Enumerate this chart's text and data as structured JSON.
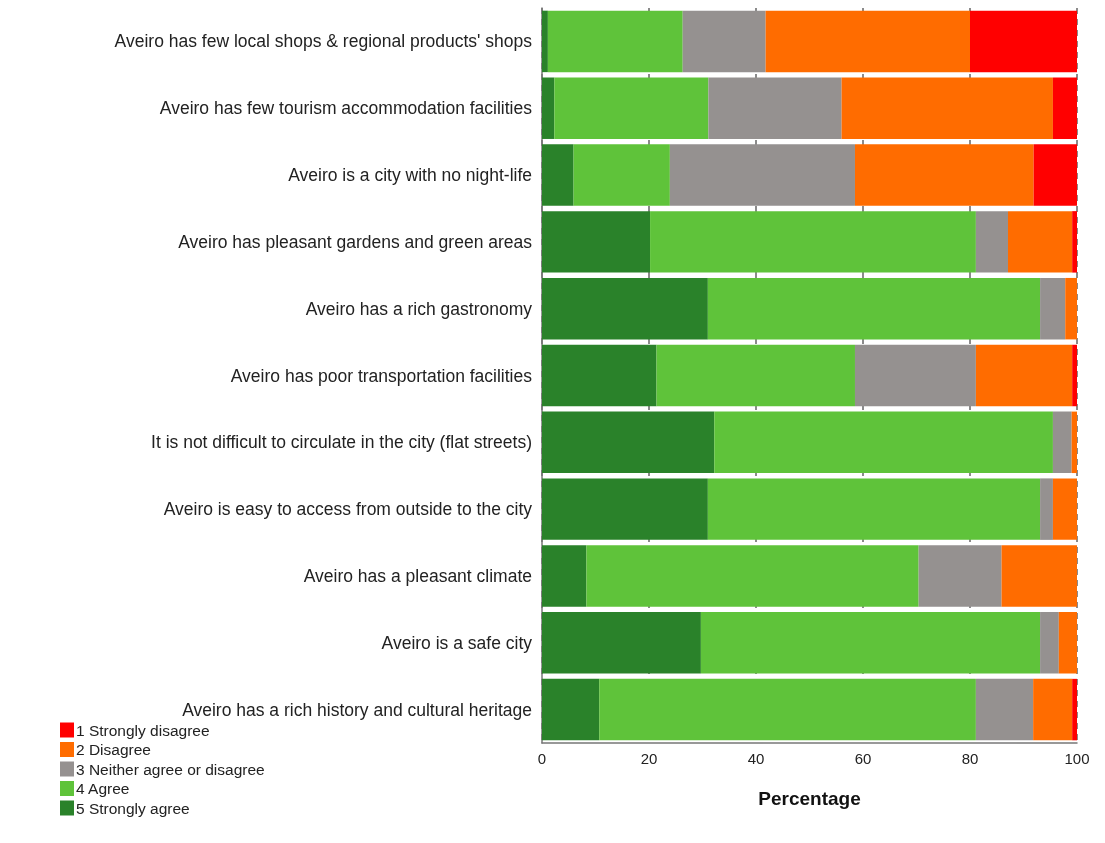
{
  "chart_data": {
    "type": "bar",
    "orientation": "horizontal",
    "stacked": true,
    "xlabel": "Percentage",
    "categories": [
      "Aveiro has few local shops & regional products' shops",
      "Aveiro has few tourism accommodation facilities",
      "Aveiro is a city with no night-life",
      "Aveiro has pleasant gardens and green areas",
      "Aveiro has a rich gastronomy",
      "Aveiro has poor transportation facilities",
      "It is not difficult to circulate in the city (flat streets)",
      "Aveiro is easy to access from outside to the city",
      "Aveiro has a pleasant climate",
      "Aveiro is a safe city",
      "Aveiro has a rich history and cultural heritage"
    ],
    "series": [
      {
        "name": "5 Strongly agree",
        "color": "#2a822a",
        "values": [
          1.1,
          2.3,
          5.9,
          20.2,
          31.0,
          21.4,
          32.2,
          31.0,
          8.3,
          29.7,
          10.7
        ]
      },
      {
        "name": "4 Agree",
        "color": "#5fc33a",
        "values": [
          25.2,
          28.8,
          18.0,
          60.9,
          62.1,
          37.1,
          63.3,
          62.1,
          62.1,
          63.4,
          70.4
        ]
      },
      {
        "name": "3 Neither agree or disagree",
        "color": "#959190",
        "values": [
          15.5,
          24.9,
          34.6,
          6.0,
          4.7,
          22.6,
          3.5,
          2.4,
          15.5,
          3.5,
          10.7
        ]
      },
      {
        "name": "2 Disagree",
        "color": "#ff6c00",
        "values": [
          38.2,
          39.5,
          33.4,
          12.0,
          2.2,
          18.0,
          1.0,
          4.5,
          14.1,
          3.4,
          7.3
        ]
      },
      {
        "name": "1 Strongly disagree",
        "color": "#ff0000",
        "values": [
          20.0,
          4.5,
          8.1,
          0.9,
          0,
          0.9,
          0,
          0,
          0,
          0,
          0.9
        ]
      }
    ],
    "xlim": [
      0,
      100
    ],
    "xticks": [
      0,
      20,
      40,
      60,
      80,
      100
    ],
    "grid": "x",
    "legend": "bottom left"
  }
}
